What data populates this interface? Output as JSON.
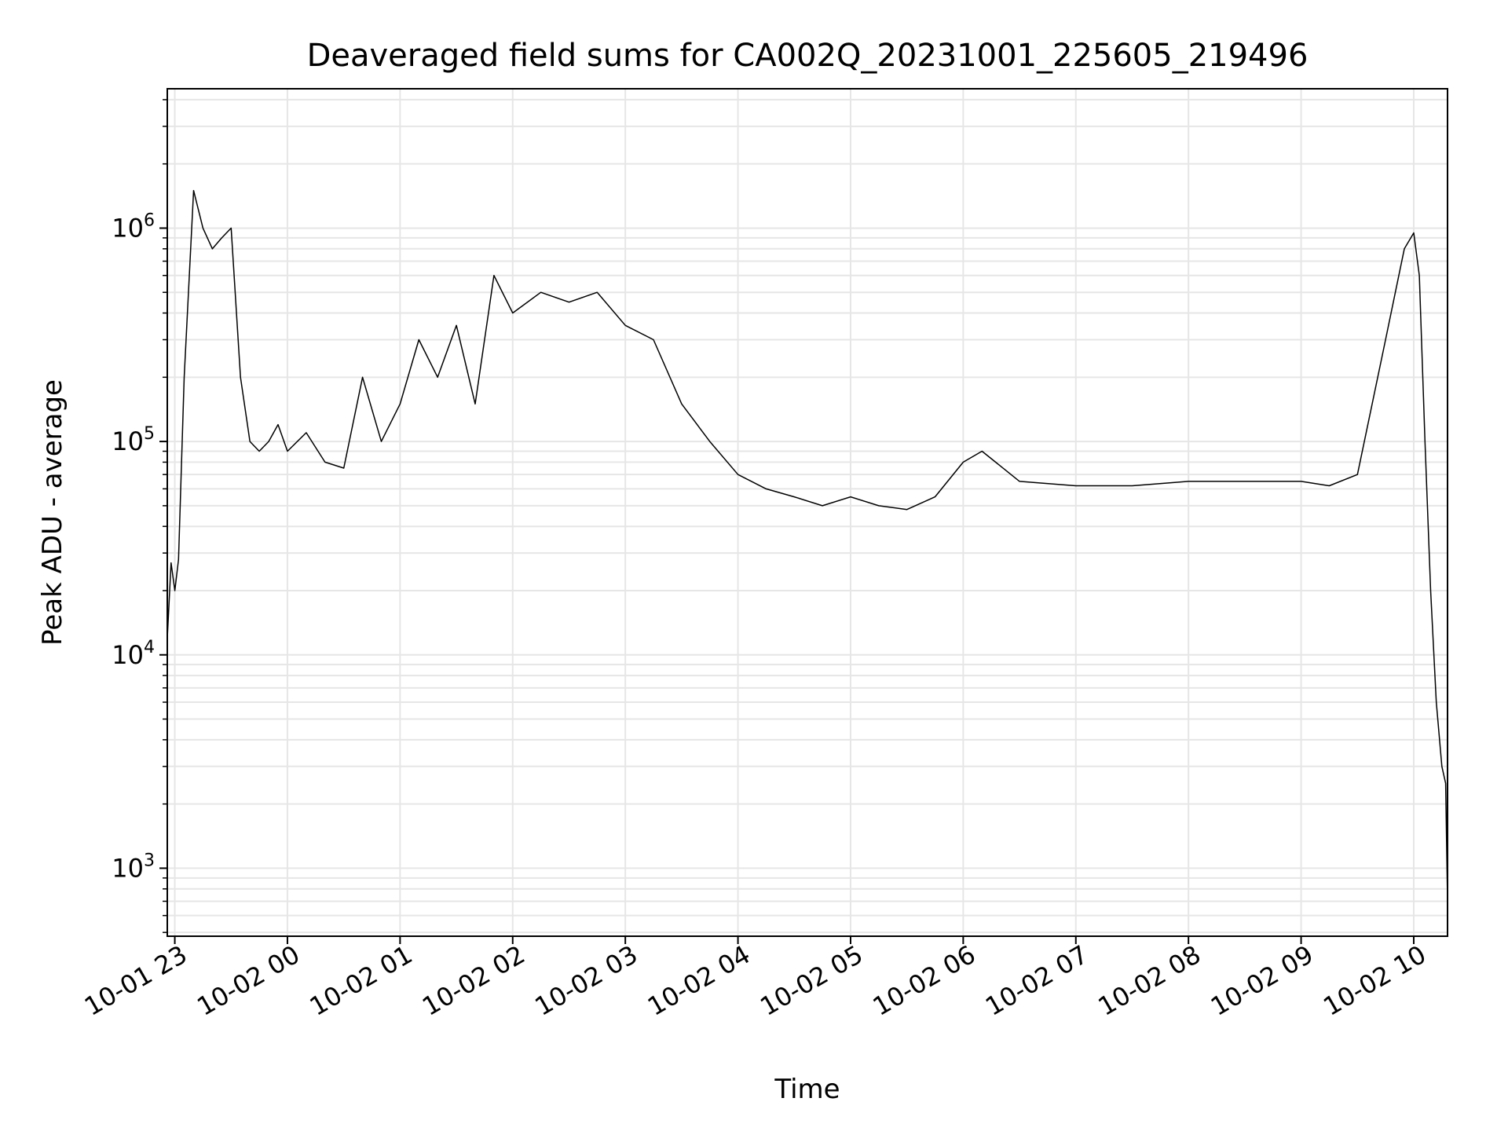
{
  "chart_data": {
    "type": "line",
    "title": "Deaveraged field sums for CA002Q_20231001_225605_219496",
    "xlabel": "Time",
    "ylabel": "Peak ADU - average",
    "y_scale": "log",
    "ylim": [
      480,
      4500000
    ],
    "xlim": [
      "2023-10-01T22:56",
      "2023-10-02T10:18"
    ],
    "grid": true,
    "grid_minor": true,
    "line_color": "#000000",
    "grid_color": "#e6e6e6",
    "x_ticks": [
      {
        "value": "2023-10-01T23:00",
        "label": "10-01 23"
      },
      {
        "value": "2023-10-02T00:00",
        "label": "10-02 00"
      },
      {
        "value": "2023-10-02T01:00",
        "label": "10-02 01"
      },
      {
        "value": "2023-10-02T02:00",
        "label": "10-02 02"
      },
      {
        "value": "2023-10-02T03:00",
        "label": "10-02 03"
      },
      {
        "value": "2023-10-02T04:00",
        "label": "10-02 04"
      },
      {
        "value": "2023-10-02T05:00",
        "label": "10-02 05"
      },
      {
        "value": "2023-10-02T06:00",
        "label": "10-02 06"
      },
      {
        "value": "2023-10-02T07:00",
        "label": "10-02 07"
      },
      {
        "value": "2023-10-02T08:00",
        "label": "10-02 08"
      },
      {
        "value": "2023-10-02T09:00",
        "label": "10-02 09"
      },
      {
        "value": "2023-10-02T10:00",
        "label": "10-02 10"
      }
    ],
    "y_ticks": [
      {
        "value": 1000,
        "base": "10",
        "exp": "3"
      },
      {
        "value": 10000,
        "base": "10",
        "exp": "4"
      },
      {
        "value": 100000,
        "base": "10",
        "exp": "5"
      },
      {
        "value": 1000000,
        "base": "10",
        "exp": "6"
      }
    ],
    "series": [
      {
        "x": [
          "2023-10-01T22:56",
          "2023-10-01T22:58",
          "2023-10-01T23:00",
          "2023-10-01T23:02",
          "2023-10-01T23:05",
          "2023-10-01T23:10",
          "2023-10-01T23:15",
          "2023-10-01T23:20",
          "2023-10-01T23:25",
          "2023-10-01T23:30",
          "2023-10-01T23:35",
          "2023-10-01T23:40",
          "2023-10-01T23:45",
          "2023-10-01T23:50",
          "2023-10-01T23:55",
          "2023-10-02T00:00",
          "2023-10-02T00:10",
          "2023-10-02T00:20",
          "2023-10-02T00:30",
          "2023-10-02T00:40",
          "2023-10-02T00:50",
          "2023-10-02T01:00",
          "2023-10-02T01:10",
          "2023-10-02T01:20",
          "2023-10-02T01:30",
          "2023-10-02T01:40",
          "2023-10-02T01:50",
          "2023-10-02T02:00",
          "2023-10-02T02:15",
          "2023-10-02T02:30",
          "2023-10-02T02:45",
          "2023-10-02T03:00",
          "2023-10-02T03:15",
          "2023-10-02T03:30",
          "2023-10-02T03:45",
          "2023-10-02T04:00",
          "2023-10-02T04:15",
          "2023-10-02T04:30",
          "2023-10-02T04:45",
          "2023-10-02T05:00",
          "2023-10-02T05:15",
          "2023-10-02T05:30",
          "2023-10-02T05:45",
          "2023-10-02T06:00",
          "2023-10-02T06:10",
          "2023-10-02T06:30",
          "2023-10-02T07:00",
          "2023-10-02T07:30",
          "2023-10-02T08:00",
          "2023-10-02T08:30",
          "2023-10-02T09:00",
          "2023-10-02T09:15",
          "2023-10-02T09:30",
          "2023-10-02T09:45",
          "2023-10-02T09:55",
          "2023-10-02T10:00",
          "2023-10-02T10:03",
          "2023-10-02T10:06",
          "2023-10-02T10:09",
          "2023-10-02T10:12",
          "2023-10-02T10:15",
          "2023-10-02T10:17",
          "2023-10-02T10:18"
        ],
        "y": [
          12000,
          27000,
          20000,
          28000,
          200000,
          1500000,
          1000000,
          800000,
          900000,
          1000000,
          200000,
          100000,
          90000,
          100000,
          120000,
          90000,
          110000,
          80000,
          75000,
          200000,
          100000,
          150000,
          300000,
          200000,
          350000,
          150000,
          600000,
          400000,
          500000,
          450000,
          500000,
          350000,
          300000,
          150000,
          100000,
          70000,
          60000,
          55000,
          50000,
          55000,
          50000,
          48000,
          55000,
          80000,
          90000,
          65000,
          62000,
          62000,
          65000,
          65000,
          65000,
          62000,
          70000,
          300000,
          800000,
          950000,
          600000,
          100000,
          20000,
          6000,
          3000,
          2500,
          700
        ]
      }
    ]
  }
}
